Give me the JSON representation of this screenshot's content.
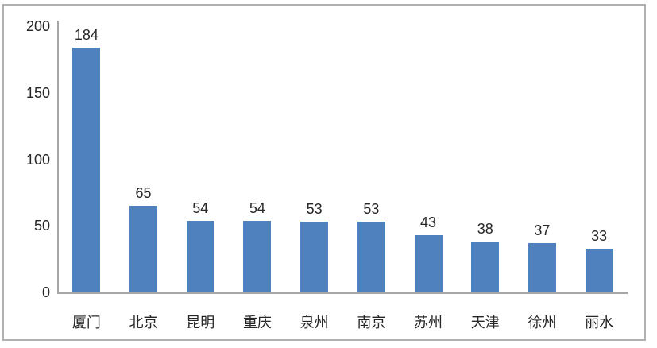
{
  "chart_data": {
    "type": "bar",
    "title": "",
    "xlabel": "",
    "ylabel": "",
    "categories": [
      "厦门",
      "北京",
      "昆明",
      "重庆",
      "泉州",
      "南京",
      "苏州",
      "天津",
      "徐州",
      "丽水"
    ],
    "values": [
      184,
      65,
      54,
      54,
      53,
      53,
      43,
      38,
      37,
      33
    ],
    "ylim": [
      0,
      200
    ],
    "yticks": [
      0,
      50,
      100,
      150,
      200
    ],
    "grid": false,
    "legend_position": "none",
    "data_labels_shown": true,
    "colors": {
      "bar": "#4e81bd",
      "axis": "#a6a6a6",
      "text": "#262626",
      "frame_border": "#b0b0b0",
      "background": "#ffffff"
    }
  }
}
